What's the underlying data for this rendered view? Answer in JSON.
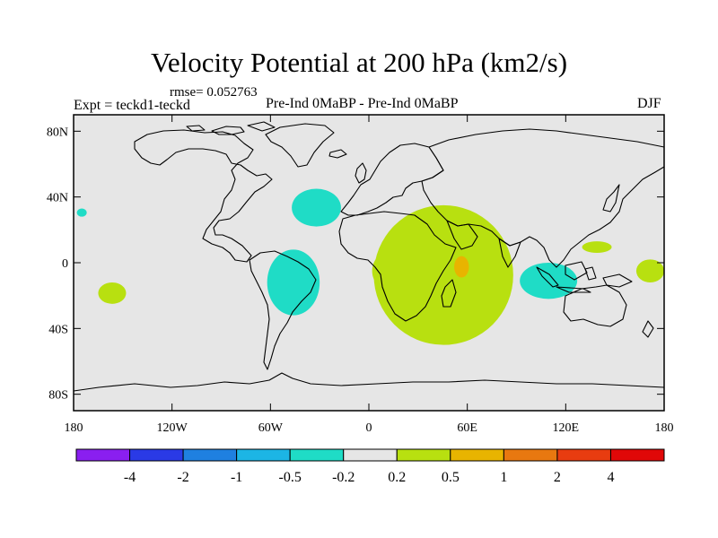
{
  "chart_data": {
    "type": "heatmap",
    "title": "Velocity Potential at 200 hPa (km2/s)",
    "subtitle_left": "Expt = teckd1-teckd",
    "subtitle_center": "Pre-Ind 0MaBP - Pre-Ind 0MaBP",
    "subtitle_right": "DJF",
    "stat": "rmse= 0.052763",
    "x_ticks": [
      "180",
      "120W",
      "60W",
      "0",
      "60E",
      "120E",
      "180"
    ],
    "x_tick_values": [
      -180,
      -120,
      -60,
      0,
      60,
      120,
      180
    ],
    "y_ticks": [
      "80N",
      "40N",
      "0",
      "40S",
      "80S"
    ],
    "y_tick_values": [
      80,
      40,
      0,
      -40,
      -80
    ],
    "xlim": [
      -180,
      180
    ],
    "ylim": [
      -90,
      90
    ],
    "colorbar": {
      "labels": [
        "-4",
        "-2",
        "-1",
        "-0.5",
        "-0.2",
        "0.2",
        "0.5",
        "1",
        "2",
        "4"
      ],
      "colors": [
        "#8a1ff0",
        "#2a3ae6",
        "#1f80e0",
        "#1cb5e5",
        "#1fdcc6",
        "#e6e6e6",
        "#b8e010",
        "#e8b400",
        "#e87810",
        "#e83c10",
        "#e00808"
      ]
    },
    "background_color": "#e6e6e6",
    "regions": [
      {
        "name": "north-atlantic",
        "level": "-0.5 to -0.2",
        "color": "#1fdcc6",
        "lon_range": [
          -47,
          -17
        ],
        "lat_range": [
          22,
          45
        ]
      },
      {
        "name": "east-pacific-small",
        "level": "-0.5 to -0.2",
        "color": "#1fdcc6",
        "lon_range": [
          -178,
          -172
        ],
        "lat_range": [
          28,
          33
        ]
      },
      {
        "name": "south-america",
        "level": "-0.5 to -0.2",
        "color": "#1fdcc6",
        "lon_range": [
          -62,
          -30
        ],
        "lat_range": [
          -32,
          8
        ]
      },
      {
        "name": "indonesia",
        "level": "-0.5 to -0.2",
        "color": "#1fdcc6",
        "lon_range": [
          92,
          127
        ],
        "lat_range": [
          -22,
          0
        ]
      },
      {
        "name": "south-pacific",
        "level": "0.2 to 0.5",
        "color": "#b8e010",
        "lon_range": [
          -165,
          -148
        ],
        "lat_range": [
          -25,
          -12
        ]
      },
      {
        "name": "west-africa",
        "level": "0.2 to 0.5",
        "color": "#b8e010",
        "lon_range": [
          2,
          28
        ],
        "lat_range": [
          -18,
          8
        ]
      },
      {
        "name": "indian-ocean",
        "level": "0.2 to 0.5",
        "color": "#b8e010",
        "lon_range": [
          3,
          88
        ],
        "lat_range": [
          -50,
          35
        ]
      },
      {
        "name": "philippine-sea",
        "level": "0.2 to 0.5",
        "color": "#b8e010",
        "lon_range": [
          130,
          148
        ],
        "lat_range": [
          6,
          13
        ]
      },
      {
        "name": "west-pacific",
        "level": "0.2 to 0.5",
        "color": "#b8e010",
        "lon_range": [
          163,
          180
        ],
        "lat_range": [
          -12,
          2
        ]
      },
      {
        "name": "madagascar-max",
        "level": "0.5 to 1",
        "color": "#e8b400",
        "lon_range": [
          52,
          61
        ],
        "lat_range": [
          -9,
          4
        ]
      }
    ]
  }
}
